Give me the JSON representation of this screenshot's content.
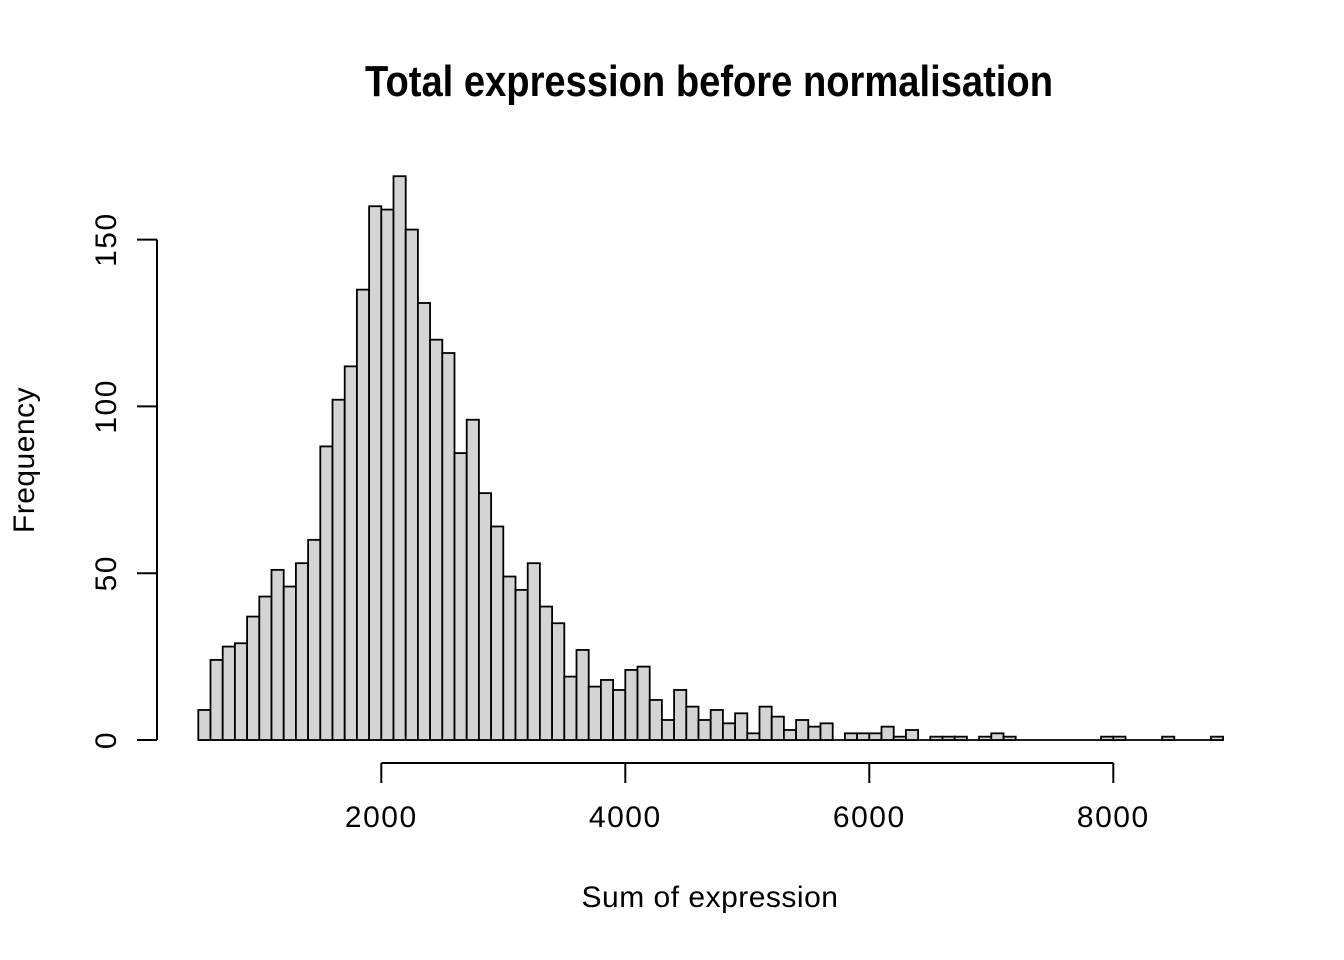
{
  "page": {
    "background_color": "#ffffff"
  },
  "chart_data": {
    "type": "bar",
    "subtype": "histogram",
    "title": "Total expression before normalisation",
    "xlabel": "Sum of expression",
    "ylabel": "Frequency",
    "bin_start": 500,
    "bin_width": 100,
    "counts": [
      9,
      24,
      28,
      29,
      37,
      43,
      51,
      46,
      53,
      60,
      88,
      102,
      112,
      135,
      160,
      159,
      169,
      153,
      131,
      120,
      116,
      86,
      96,
      74,
      64,
      49,
      45,
      53,
      40,
      35,
      19,
      27,
      16,
      18,
      15,
      21,
      22,
      12,
      6,
      15,
      10,
      6,
      9,
      5,
      8,
      2,
      10,
      7,
      3,
      6,
      4,
      5,
      0,
      2,
      2,
      2,
      4,
      1,
      3,
      0,
      1,
      1,
      1,
      0,
      1,
      2,
      1,
      0,
      0,
      0,
      0,
      0,
      0,
      0,
      1,
      1,
      0,
      0,
      0,
      1,
      0,
      0,
      0,
      1
    ],
    "x_ticks": [
      2000,
      4000,
      6000,
      8000
    ],
    "y_ticks": [
      0,
      50,
      100,
      150
    ],
    "xlim": [
      500,
      8900
    ],
    "ylim": [
      0,
      169
    ],
    "grid": false,
    "legend": null,
    "bar_fill": "#d4d4d4",
    "bar_stroke": "#000000",
    "axis_color": "#000000"
  }
}
